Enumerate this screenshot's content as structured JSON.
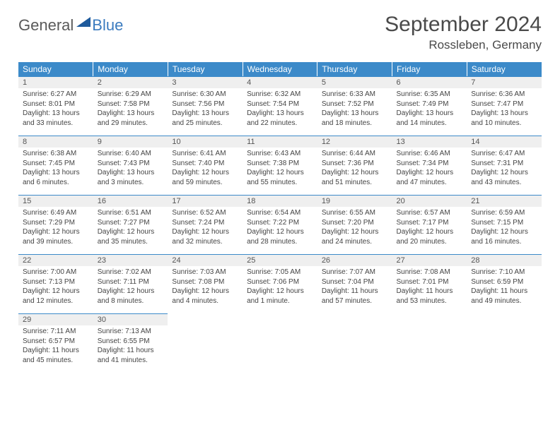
{
  "logo": {
    "general": "General",
    "blue": "Blue"
  },
  "title": "September 2024",
  "location": "Rossleben, Germany",
  "colors": {
    "header_bg": "#3c8ac9",
    "header_text": "#ffffff",
    "daynum_bg": "#efefef",
    "border": "#3c8ac9",
    "logo_blue": "#1e5a9c"
  },
  "weekdays": [
    "Sunday",
    "Monday",
    "Tuesday",
    "Wednesday",
    "Thursday",
    "Friday",
    "Saturday"
  ],
  "weeks": [
    [
      {
        "n": "1",
        "sr": "6:27 AM",
        "ss": "8:01 PM",
        "dl": "13 hours and 33 minutes."
      },
      {
        "n": "2",
        "sr": "6:29 AM",
        "ss": "7:58 PM",
        "dl": "13 hours and 29 minutes."
      },
      {
        "n": "3",
        "sr": "6:30 AM",
        "ss": "7:56 PM",
        "dl": "13 hours and 25 minutes."
      },
      {
        "n": "4",
        "sr": "6:32 AM",
        "ss": "7:54 PM",
        "dl": "13 hours and 22 minutes."
      },
      {
        "n": "5",
        "sr": "6:33 AM",
        "ss": "7:52 PM",
        "dl": "13 hours and 18 minutes."
      },
      {
        "n": "6",
        "sr": "6:35 AM",
        "ss": "7:49 PM",
        "dl": "13 hours and 14 minutes."
      },
      {
        "n": "7",
        "sr": "6:36 AM",
        "ss": "7:47 PM",
        "dl": "13 hours and 10 minutes."
      }
    ],
    [
      {
        "n": "8",
        "sr": "6:38 AM",
        "ss": "7:45 PM",
        "dl": "13 hours and 6 minutes."
      },
      {
        "n": "9",
        "sr": "6:40 AM",
        "ss": "7:43 PM",
        "dl": "13 hours and 3 minutes."
      },
      {
        "n": "10",
        "sr": "6:41 AM",
        "ss": "7:40 PM",
        "dl": "12 hours and 59 minutes."
      },
      {
        "n": "11",
        "sr": "6:43 AM",
        "ss": "7:38 PM",
        "dl": "12 hours and 55 minutes."
      },
      {
        "n": "12",
        "sr": "6:44 AM",
        "ss": "7:36 PM",
        "dl": "12 hours and 51 minutes."
      },
      {
        "n": "13",
        "sr": "6:46 AM",
        "ss": "7:34 PM",
        "dl": "12 hours and 47 minutes."
      },
      {
        "n": "14",
        "sr": "6:47 AM",
        "ss": "7:31 PM",
        "dl": "12 hours and 43 minutes."
      }
    ],
    [
      {
        "n": "15",
        "sr": "6:49 AM",
        "ss": "7:29 PM",
        "dl": "12 hours and 39 minutes."
      },
      {
        "n": "16",
        "sr": "6:51 AM",
        "ss": "7:27 PM",
        "dl": "12 hours and 35 minutes."
      },
      {
        "n": "17",
        "sr": "6:52 AM",
        "ss": "7:24 PM",
        "dl": "12 hours and 32 minutes."
      },
      {
        "n": "18",
        "sr": "6:54 AM",
        "ss": "7:22 PM",
        "dl": "12 hours and 28 minutes."
      },
      {
        "n": "19",
        "sr": "6:55 AM",
        "ss": "7:20 PM",
        "dl": "12 hours and 24 minutes."
      },
      {
        "n": "20",
        "sr": "6:57 AM",
        "ss": "7:17 PM",
        "dl": "12 hours and 20 minutes."
      },
      {
        "n": "21",
        "sr": "6:59 AM",
        "ss": "7:15 PM",
        "dl": "12 hours and 16 minutes."
      }
    ],
    [
      {
        "n": "22",
        "sr": "7:00 AM",
        "ss": "7:13 PM",
        "dl": "12 hours and 12 minutes."
      },
      {
        "n": "23",
        "sr": "7:02 AM",
        "ss": "7:11 PM",
        "dl": "12 hours and 8 minutes."
      },
      {
        "n": "24",
        "sr": "7:03 AM",
        "ss": "7:08 PM",
        "dl": "12 hours and 4 minutes."
      },
      {
        "n": "25",
        "sr": "7:05 AM",
        "ss": "7:06 PM",
        "dl": "12 hours and 1 minute."
      },
      {
        "n": "26",
        "sr": "7:07 AM",
        "ss": "7:04 PM",
        "dl": "11 hours and 57 minutes."
      },
      {
        "n": "27",
        "sr": "7:08 AM",
        "ss": "7:01 PM",
        "dl": "11 hours and 53 minutes."
      },
      {
        "n": "28",
        "sr": "7:10 AM",
        "ss": "6:59 PM",
        "dl": "11 hours and 49 minutes."
      }
    ],
    [
      {
        "n": "29",
        "sr": "7:11 AM",
        "ss": "6:57 PM",
        "dl": "11 hours and 45 minutes."
      },
      {
        "n": "30",
        "sr": "7:13 AM",
        "ss": "6:55 PM",
        "dl": "11 hours and 41 minutes."
      },
      null,
      null,
      null,
      null,
      null
    ]
  ],
  "labels": {
    "sunrise": "Sunrise:",
    "sunset": "Sunset:",
    "daylight": "Daylight:"
  }
}
